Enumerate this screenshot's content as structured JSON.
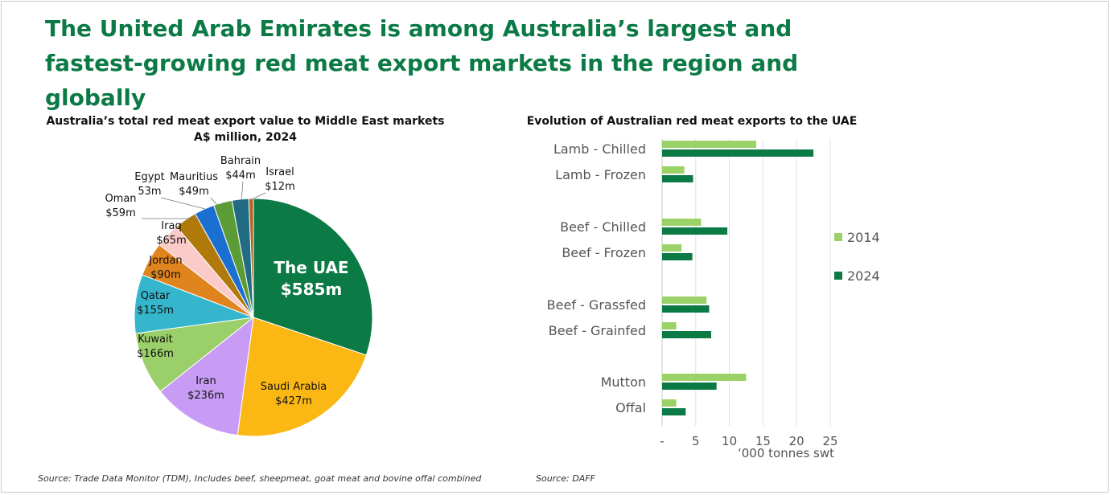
{
  "headline": "The United Arab Emirates is among Australia’s largest and fastest-growing red meat export markets in the region and globally",
  "chart_data": [
    {
      "type": "pie",
      "title": "Australia’s total red meat export value to Middle East markets",
      "subtitle": "A$ million, 2024",
      "slices": [
        {
          "name": "The UAE",
          "label": "$585m",
          "value": 585,
          "color": "#0b7a45"
        },
        {
          "name": "Saudi Arabia",
          "label": "$427m",
          "value": 427,
          "color": "#fbb814"
        },
        {
          "name": "Iran",
          "label": "$236m",
          "value": 236,
          "color": "#c89cf4"
        },
        {
          "name": "Kuwait",
          "label": "$166m",
          "value": 166,
          "color": "#9bcf6a"
        },
        {
          "name": "Qatar",
          "label": "$155m",
          "value": 155,
          "color": "#35b6cc"
        },
        {
          "name": "Jordan",
          "label": "$90m",
          "value": 90,
          "color": "#e0841e"
        },
        {
          "name": "Iraq",
          "label": "$65m",
          "value": 65,
          "color": "#fbcac9"
        },
        {
          "name": "Oman",
          "label": "$59m",
          "value": 59,
          "color": "#b07a0a"
        },
        {
          "name": "Egypt",
          "label": "53m",
          "value": 53,
          "color": "#1b6fd0"
        },
        {
          "name": "Mauritius",
          "label": "$49m",
          "value": 49,
          "color": "#5c9c36"
        },
        {
          "name": "Bahrain",
          "label": "$44m",
          "value": 44,
          "color": "#216c83"
        },
        {
          "name": "Israel",
          "label": "$12m",
          "value": 12,
          "color": "#b4631f"
        }
      ],
      "source": "Source: Trade Data Monitor (TDM), Includes beef, sheepmeat, goat meat and bovine offal combined"
    },
    {
      "type": "bar",
      "orientation": "horizontal",
      "title": "Evolution of Australian red meat exports to the UAE",
      "categories": [
        "Lamb - Chilled",
        "Lamb - Frozen",
        "Beef - Chilled",
        "Beef - Frozen",
        "Beef - Grassfed",
        "Beef - Grainfed",
        "Mutton",
        "Offal"
      ],
      "series": [
        {
          "name": "2014",
          "color": "#9bd267",
          "values": [
            14,
            3.3,
            5.8,
            2.9,
            6.6,
            2.1,
            12.5,
            2.1
          ]
        },
        {
          "name": "2024",
          "color": "#0b7a45",
          "values": [
            22.5,
            4.6,
            9.7,
            4.5,
            7.0,
            7.3,
            8.1,
            3.5
          ]
        }
      ],
      "xlabel": "‘000 tonnes swt",
      "xlim": [
        0,
        25
      ],
      "xticks": [
        "-",
        "5",
        "10",
        "15",
        "20",
        "25"
      ],
      "grid": true,
      "legend": "right",
      "source": "Source: DAFF"
    }
  ]
}
